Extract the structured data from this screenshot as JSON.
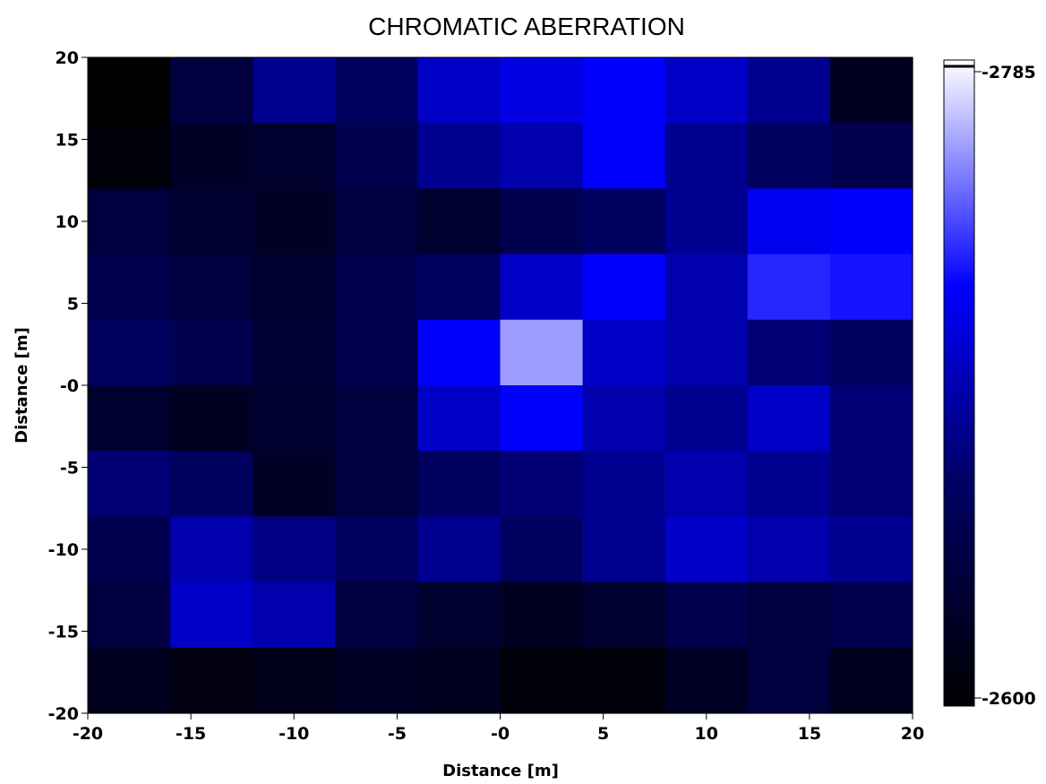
{
  "chart_data": {
    "type": "heatmap",
    "title": "CHROMATIC ABERRATION",
    "xlabel": "Distance [m]",
    "ylabel": "Distance [m]",
    "xlim": [
      -20,
      20
    ],
    "ylim": [
      -20,
      20
    ],
    "x_ticks": [
      "-20",
      "-15",
      "-10",
      "-5",
      "-0",
      "5",
      "10",
      "15",
      "20"
    ],
    "y_ticks": [
      "20",
      "15",
      "10",
      "5",
      "-0",
      "-5",
      "-10",
      "-15",
      "-20"
    ],
    "colorbar": {
      "min": -2600,
      "max": -2785,
      "min_label": "-2600",
      "max_label": "-2785",
      "colors": [
        "#000000",
        "#000066",
        "#0000ff",
        "#ffffff"
      ]
    },
    "grid": false,
    "x": [
      -18,
      -14,
      -10,
      -6,
      -2,
      2,
      6,
      10,
      14,
      18
    ],
    "y": [
      18,
      14,
      10,
      6,
      2,
      -2,
      -6,
      -10,
      -14,
      -18
    ],
    "z": [
      [
        -2600,
        -2640,
        -2680,
        -2660,
        -2700,
        -2710,
        -2720,
        -2700,
        -2680,
        -2620
      ],
      [
        -2605,
        -2625,
        -2630,
        -2650,
        -2680,
        -2690,
        -2720,
        -2680,
        -2660,
        -2650
      ],
      [
        -2640,
        -2630,
        -2625,
        -2640,
        -2630,
        -2650,
        -2660,
        -2680,
        -2715,
        -2720
      ],
      [
        -2650,
        -2640,
        -2630,
        -2650,
        -2660,
        -2700,
        -2720,
        -2690,
        -2730,
        -2725
      ],
      [
        -2660,
        -2650,
        -2635,
        -2650,
        -2720,
        -2760,
        -2700,
        -2690,
        -2670,
        -2660
      ],
      [
        -2630,
        -2620,
        -2630,
        -2640,
        -2700,
        -2720,
        -2690,
        -2680,
        -2700,
        -2670
      ],
      [
        -2670,
        -2660,
        -2625,
        -2640,
        -2660,
        -2670,
        -2680,
        -2690,
        -2680,
        -2670
      ],
      [
        -2650,
        -2690,
        -2675,
        -2660,
        -2680,
        -2660,
        -2680,
        -2700,
        -2690,
        -2680
      ],
      [
        -2640,
        -2700,
        -2690,
        -2640,
        -2630,
        -2620,
        -2630,
        -2650,
        -2640,
        -2650
      ],
      [
        -2620,
        -2610,
        -2615,
        -2625,
        -2620,
        -2605,
        -2605,
        -2625,
        -2640,
        -2620
      ]
    ]
  }
}
